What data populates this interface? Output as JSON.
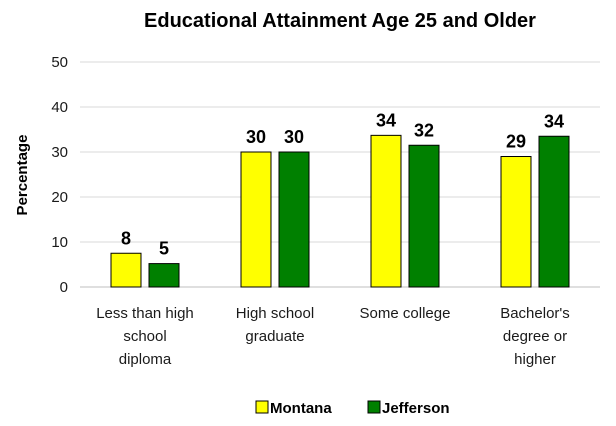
{
  "chart_data": {
    "type": "bar",
    "title": "Educational Attainment Age 25 and Older",
    "ylabel": "Percentage",
    "xlabel": "",
    "ylim": [
      0,
      50
    ],
    "yticks": [
      0,
      10,
      20,
      30,
      40,
      50
    ],
    "categories": [
      [
        "Less than high",
        "school",
        "diploma"
      ],
      [
        "High school",
        "graduate"
      ],
      [
        "Some college"
      ],
      [
        "Bachelor's",
        "degree or",
        "higher"
      ]
    ],
    "series": [
      {
        "name": "Montana",
        "color": "#ffff00",
        "values": [
          7.5,
          30,
          33.7,
          29
        ],
        "labels": [
          "8",
          "30",
          "34",
          "29"
        ]
      },
      {
        "name": "Jefferson",
        "color": "#008000",
        "values": [
          5.2,
          30,
          31.5,
          33.5
        ],
        "labels": [
          "5",
          "30",
          "32",
          "34"
        ]
      }
    ],
    "grid": true,
    "legend": "bottom"
  }
}
